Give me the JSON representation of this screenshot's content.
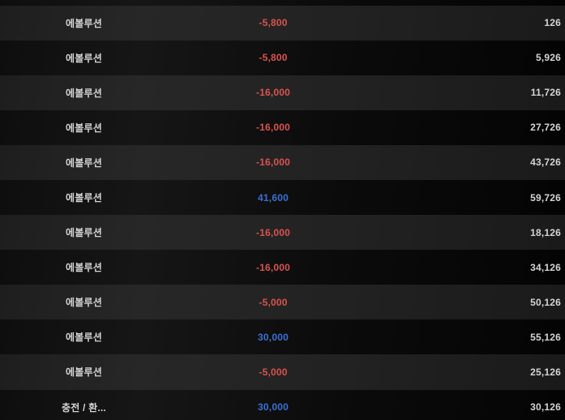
{
  "table": {
    "rows": [
      {
        "label": "에볼루션",
        "amount": "-5,800",
        "amount_type": "negative",
        "balance": "126"
      },
      {
        "label": "에볼루션",
        "amount": "-5,800",
        "amount_type": "negative",
        "balance": "5,926"
      },
      {
        "label": "에볼루션",
        "amount": "-16,000",
        "amount_type": "negative",
        "balance": "11,726"
      },
      {
        "label": "에볼루션",
        "amount": "-16,000",
        "amount_type": "negative",
        "balance": "27,726"
      },
      {
        "label": "에볼루션",
        "amount": "-16,000",
        "amount_type": "negative",
        "balance": "43,726"
      },
      {
        "label": "에볼루션",
        "amount": "41,600",
        "amount_type": "positive",
        "balance": "59,726"
      },
      {
        "label": "에볼루션",
        "amount": "-16,000",
        "amount_type": "negative",
        "balance": "18,126"
      },
      {
        "label": "에볼루션",
        "amount": "-16,000",
        "amount_type": "negative",
        "balance": "34,126"
      },
      {
        "label": "에볼루션",
        "amount": "-5,000",
        "amount_type": "negative",
        "balance": "50,126"
      },
      {
        "label": "에볼루션",
        "amount": "30,000",
        "amount_type": "positive",
        "balance": "55,126"
      },
      {
        "label": "에볼루션",
        "amount": "-5,000",
        "amount_type": "negative",
        "balance": "25,126"
      },
      {
        "label": "충전 / 환...",
        "amount": "30,000",
        "amount_type": "positive",
        "balance": "30,126"
      }
    ]
  },
  "colors": {
    "negative_amount": "#d9534f",
    "positive_amount": "#3a70d4",
    "text": "#d5d5d5",
    "row_dark": "#0d0d0d",
    "row_gray": "#222222"
  }
}
